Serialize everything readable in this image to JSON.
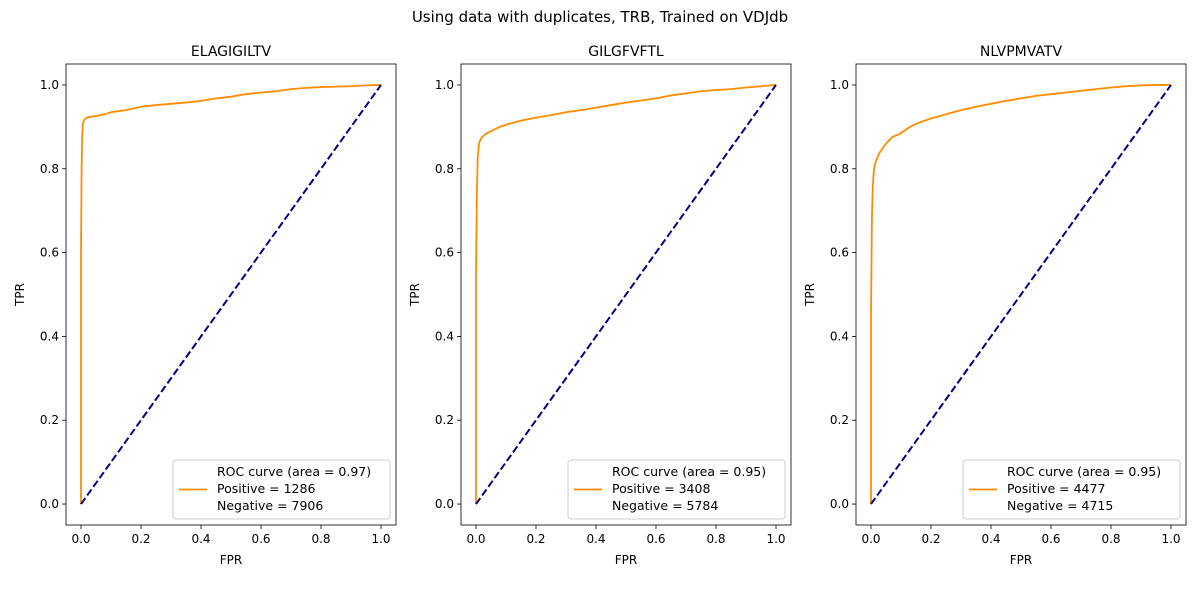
{
  "suptitle": "Using data with duplicates, TRB, Trained on VDJdb",
  "colors": {
    "roc": "#ff8c00",
    "diagonal": "#000080",
    "axes": "#000000",
    "legend_border": "#cccccc"
  },
  "chart_data": [
    {
      "type": "line",
      "title": "ELAGIGILTV",
      "xlabel": "FPR",
      "ylabel": "TPR",
      "xlim": [
        -0.05,
        1.05
      ],
      "ylim": [
        -0.05,
        1.05
      ],
      "xticks": [
        "0.0",
        "0.2",
        "0.4",
        "0.6",
        "0.8",
        "1.0"
      ],
      "yticks": [
        "0.0",
        "0.2",
        "0.4",
        "0.6",
        "0.8",
        "1.0"
      ],
      "grid": false,
      "legend_position": "lower-right",
      "legend_lines": [
        "ROC curve (area = 0.97)",
        "Positive = 1286",
        "Negative = 7906"
      ],
      "series": [
        {
          "role": "roc",
          "x": [
            0.0,
            0.0,
            0.002,
            0.004,
            0.006,
            0.008,
            0.012,
            0.02,
            0.03,
            0.05,
            0.08,
            0.1,
            0.15,
            0.2,
            0.25,
            0.3,
            0.35,
            0.4,
            0.45,
            0.5,
            0.55,
            0.6,
            0.65,
            0.7,
            0.75,
            0.8,
            0.85,
            0.9,
            0.95,
            1.0
          ],
          "y": [
            0.0,
            0.6,
            0.8,
            0.88,
            0.905,
            0.912,
            0.918,
            0.922,
            0.924,
            0.926,
            0.93,
            0.935,
            0.94,
            0.948,
            0.952,
            0.955,
            0.958,
            0.962,
            0.968,
            0.972,
            0.978,
            0.982,
            0.985,
            0.99,
            0.993,
            0.995,
            0.996,
            0.997,
            0.999,
            1.0
          ]
        },
        {
          "role": "diagonal",
          "x": [
            0.0,
            1.0
          ],
          "y": [
            0.0,
            1.0
          ]
        }
      ]
    },
    {
      "type": "line",
      "title": "GILGFVFTL",
      "xlabel": "FPR",
      "ylabel": "TPR",
      "xlim": [
        -0.05,
        1.05
      ],
      "ylim": [
        -0.05,
        1.05
      ],
      "xticks": [
        "0.0",
        "0.2",
        "0.4",
        "0.6",
        "0.8",
        "1.0"
      ],
      "yticks": [
        "0.0",
        "0.2",
        "0.4",
        "0.6",
        "0.8",
        "1.0"
      ],
      "grid": false,
      "legend_position": "lower-right",
      "legend_lines": [
        "ROC curve (area = 0.95)",
        "Positive = 3408",
        "Negative = 5784"
      ],
      "series": [
        {
          "role": "roc",
          "x": [
            0.0,
            0.0,
            0.003,
            0.006,
            0.01,
            0.015,
            0.02,
            0.03,
            0.05,
            0.08,
            0.1,
            0.15,
            0.2,
            0.25,
            0.3,
            0.35,
            0.4,
            0.45,
            0.5,
            0.55,
            0.6,
            0.65,
            0.7,
            0.75,
            0.8,
            0.85,
            0.9,
            0.95,
            1.0
          ],
          "y": [
            0.0,
            0.55,
            0.75,
            0.83,
            0.86,
            0.87,
            0.875,
            0.882,
            0.89,
            0.9,
            0.905,
            0.915,
            0.922,
            0.928,
            0.935,
            0.94,
            0.946,
            0.952,
            0.958,
            0.963,
            0.968,
            0.975,
            0.98,
            0.985,
            0.988,
            0.99,
            0.994,
            0.997,
            1.0
          ]
        },
        {
          "role": "diagonal",
          "x": [
            0.0,
            1.0
          ],
          "y": [
            0.0,
            1.0
          ]
        }
      ]
    },
    {
      "type": "line",
      "title": "NLVPMVATV",
      "xlabel": "FPR",
      "ylabel": "TPR",
      "xlim": [
        -0.05,
        1.05
      ],
      "ylim": [
        -0.05,
        1.05
      ],
      "xticks": [
        "0.0",
        "0.2",
        "0.4",
        "0.6",
        "0.8",
        "1.0"
      ],
      "yticks": [
        "0.0",
        "0.2",
        "0.4",
        "0.6",
        "0.8",
        "1.0"
      ],
      "grid": false,
      "legend_position": "lower-right",
      "legend_lines": [
        "ROC curve (area = 0.95)",
        "Positive = 4477",
        "Negative = 4715"
      ],
      "series": [
        {
          "role": "roc",
          "x": [
            0.0,
            0.0,
            0.003,
            0.006,
            0.01,
            0.015,
            0.02,
            0.03,
            0.05,
            0.07,
            0.1,
            0.13,
            0.16,
            0.2,
            0.25,
            0.3,
            0.35,
            0.4,
            0.45,
            0.5,
            0.55,
            0.6,
            0.65,
            0.7,
            0.75,
            0.8,
            0.85,
            0.9,
            0.95,
            1.0
          ],
          "y": [
            0.0,
            0.45,
            0.68,
            0.76,
            0.8,
            0.815,
            0.825,
            0.84,
            0.86,
            0.875,
            0.885,
            0.9,
            0.91,
            0.92,
            0.93,
            0.94,
            0.948,
            0.955,
            0.962,
            0.968,
            0.974,
            0.978,
            0.982,
            0.986,
            0.99,
            0.994,
            0.997,
            0.999,
            1.0,
            1.0
          ]
        },
        {
          "role": "diagonal",
          "x": [
            0.0,
            1.0
          ],
          "y": [
            0.0,
            1.0
          ]
        }
      ]
    }
  ]
}
